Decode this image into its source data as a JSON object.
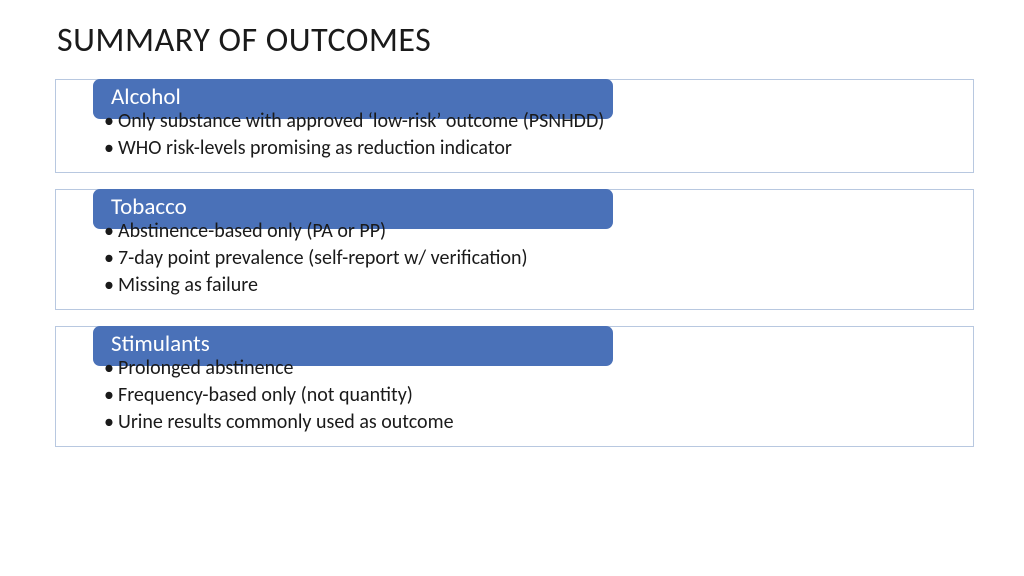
{
  "title": "SUMMARY OF OUTCOMES",
  "header_bg": "#4a71b8",
  "box_border": "#b8c8e0",
  "blocks": [
    {
      "header": "Alcohol",
      "bullets": [
        "Only substance with approved ‘low-risk’ outcome (PSNHDD)",
        "WHO risk-levels promising as reduction indicator"
      ]
    },
    {
      "header": "Tobacco",
      "bullets": [
        "Abstinence-based only (PA or PP)",
        "7-day point prevalence (self-report w/  verification)",
        "Missing as failure"
      ]
    },
    {
      "header": "Stimulants",
      "bullets": [
        "Prolonged abstinence",
        "Frequency-based only (not quantity)",
        "Urine results commonly used as outcome"
      ]
    }
  ]
}
